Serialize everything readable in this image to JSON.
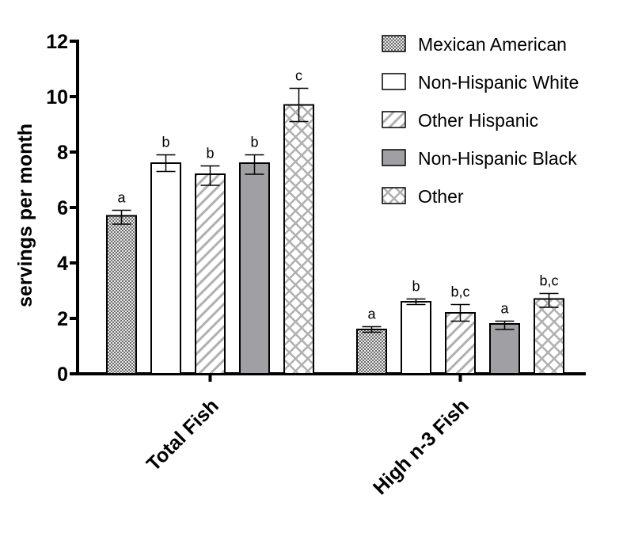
{
  "chart_data": {
    "type": "bar",
    "title": "",
    "xlabel": "",
    "ylabel": "servings per month",
    "ylim": [
      0,
      12
    ],
    "yticks": [
      "0",
      "2",
      "4",
      "6",
      "8",
      "10",
      "12"
    ],
    "grid": false,
    "legend_placement": "top-right",
    "categories": [
      "Total Fish",
      "High n-3 Fish"
    ],
    "series": [
      {
        "name": "Mexican American",
        "pattern": "checker",
        "values": [
          5.7,
          1.6
        ],
        "err_low": [
          5.4,
          1.5
        ],
        "err_high": [
          5.9,
          1.7
        ],
        "letters": [
          "a",
          "a"
        ]
      },
      {
        "name": "Non-Hispanic White",
        "pattern": "white",
        "values": [
          7.6,
          2.6
        ],
        "err_low": [
          7.3,
          2.5
        ],
        "err_high": [
          7.9,
          2.7
        ],
        "letters": [
          "b",
          "b"
        ]
      },
      {
        "name": "Other Hispanic",
        "pattern": "diagonal",
        "values": [
          7.2,
          2.2
        ],
        "err_low": [
          6.8,
          1.9
        ],
        "err_high": [
          7.5,
          2.5
        ],
        "letters": [
          "b",
          "b,c"
        ]
      },
      {
        "name": "Non-Hispanic Black",
        "pattern": "gray",
        "values": [
          7.6,
          1.8
        ],
        "err_low": [
          7.2,
          1.6
        ],
        "err_high": [
          7.9,
          1.9
        ],
        "letters": [
          "b",
          "a"
        ]
      },
      {
        "name": "Other",
        "pattern": "crosshatch",
        "values": [
          9.7,
          2.7
        ],
        "err_low": [
          9.1,
          2.4
        ],
        "err_high": [
          10.3,
          2.9
        ],
        "letters": [
          "c",
          "b,c"
        ]
      }
    ],
    "colors": {
      "gray_fill": "#a0a0a4",
      "hatch": "#b0b0b0",
      "axis": "#000000"
    }
  }
}
